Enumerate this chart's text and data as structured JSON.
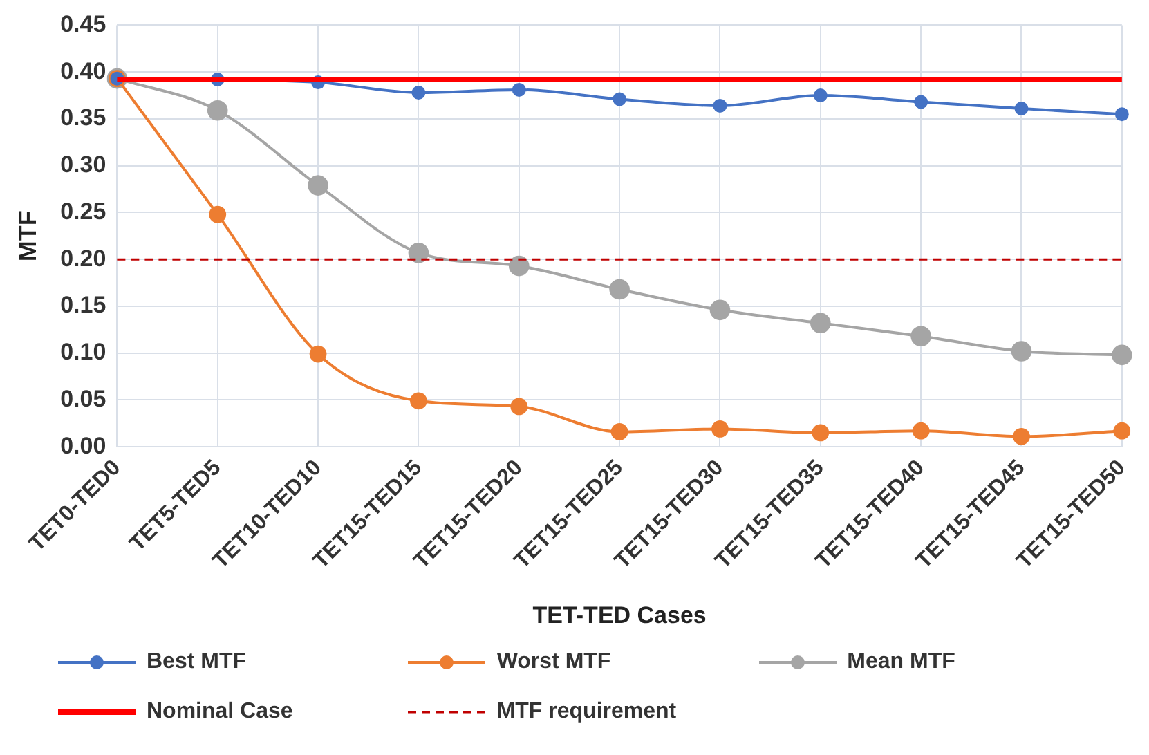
{
  "chart_data": {
    "type": "line",
    "xlabel": "TET-TED Cases",
    "ylabel": "MTF",
    "categories": [
      "TET0-TED0",
      "TET5-TED5",
      "TET10-TED10",
      "TET15-TED15",
      "TET15-TED20",
      "TET15-TED25",
      "TET15-TED30",
      "TET15-TED35",
      "TET15-TED40",
      "TET15-TED45",
      "TET15-TED50"
    ],
    "series": [
      {
        "name": "Best MTF",
        "color": "#4472c4",
        "marker": "circle",
        "values": [
          0.393,
          0.392,
          0.389,
          0.378,
          0.381,
          0.371,
          0.364,
          0.375,
          0.368,
          0.361,
          0.355
        ]
      },
      {
        "name": "Worst MTF",
        "color": "#ed7d31",
        "marker": "circle",
        "values": [
          0.393,
          0.248,
          0.099,
          0.049,
          0.043,
          0.016,
          0.019,
          0.015,
          0.017,
          0.011,
          0.017
        ]
      },
      {
        "name": "Mean MTF",
        "color": "#a5a5a5",
        "marker": "circle",
        "values": [
          0.393,
          0.359,
          0.279,
          0.207,
          0.193,
          0.168,
          0.146,
          0.132,
          0.118,
          0.102,
          0.098
        ]
      },
      {
        "name": "Nominal Case",
        "color": "#ff0000",
        "marker": "none",
        "values": [
          0.392,
          0.392,
          0.392,
          0.392,
          0.392,
          0.392,
          0.392,
          0.392,
          0.392,
          0.392,
          0.392
        ]
      },
      {
        "name": "MTF requirement",
        "color": "#c00000",
        "marker": "none",
        "line_style": "dashed",
        "values": [
          0.2,
          0.2,
          0.2,
          0.2,
          0.2,
          0.2,
          0.2,
          0.2,
          0.2,
          0.2,
          0.2
        ]
      }
    ],
    "ylim": [
      0,
      0.45
    ],
    "yticks": [
      {
        "value": 0,
        "label": "0.00"
      },
      {
        "value": 0.05,
        "label": "0.05"
      },
      {
        "value": 0.1,
        "label": "0.10"
      },
      {
        "value": 0.15,
        "label": "0.15"
      },
      {
        "value": 0.2,
        "label": "0.20"
      },
      {
        "value": 0.25,
        "label": "0.25"
      },
      {
        "value": 0.3,
        "label": "0.30"
      },
      {
        "value": 0.35,
        "label": "0.35"
      },
      {
        "value": 0.4,
        "label": "0.40"
      },
      {
        "value": 0.45,
        "label": "0.45"
      }
    ],
    "grid": true,
    "legend": "bottom"
  }
}
